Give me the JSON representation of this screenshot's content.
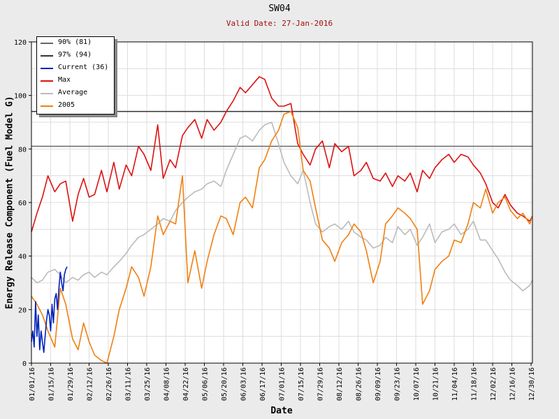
{
  "chart_data": {
    "type": "line",
    "title": "SW04",
    "subtitle": "Valid Date: 27-Jan-2016",
    "xlabel": "Date",
    "ylabel": "Energy Release Component (Fuel Model G)",
    "ylim": [
      0,
      120
    ],
    "yticks": [
      0,
      20,
      40,
      60,
      80,
      100,
      120
    ],
    "xlim": [
      "2016-01-01",
      "2016-12-31"
    ],
    "xticks": [
      "01/01/16",
      "01/15/16",
      "01/29/16",
      "02/12/16",
      "02/26/16",
      "03/11/16",
      "03/25/16",
      "04/08/16",
      "04/22/16",
      "05/06/16",
      "05/20/16",
      "06/03/16",
      "06/17/16",
      "07/01/16",
      "07/15/16",
      "07/29/16",
      "08/12/16",
      "08/26/16",
      "09/09/16",
      "09/23/16",
      "10/07/16",
      "10/21/16",
      "11/04/16",
      "11/18/16",
      "12/02/16",
      "12/16/16",
      "12/30/16"
    ],
    "grid": true,
    "legend_position": "top-left",
    "reference_lines": [
      {
        "name": "90% (81)",
        "value": 81,
        "color": "#666666"
      },
      {
        "name": "97% (94)",
        "value": 94,
        "color": "#333333"
      }
    ],
    "series": [
      {
        "name": "Max",
        "color": "#dd1111",
        "x": [
          "2016-01-01",
          "2016-01-05",
          "2016-01-09",
          "2016-01-13",
          "2016-01-18",
          "2016-01-22",
          "2016-01-26",
          "2016-01-31",
          "2016-02-04",
          "2016-02-08",
          "2016-02-12",
          "2016-02-16",
          "2016-02-21",
          "2016-02-25",
          "2016-03-01",
          "2016-03-05",
          "2016-03-10",
          "2016-03-14",
          "2016-03-19",
          "2016-03-23",
          "2016-03-28",
          "2016-04-02",
          "2016-04-06",
          "2016-04-11",
          "2016-04-15",
          "2016-04-20",
          "2016-04-24",
          "2016-04-29",
          "2016-05-04",
          "2016-05-08",
          "2016-05-13",
          "2016-05-18",
          "2016-05-22",
          "2016-05-27",
          "2016-06-01",
          "2016-06-05",
          "2016-06-10",
          "2016-06-15",
          "2016-06-19",
          "2016-06-24",
          "2016-06-29",
          "2016-07-03",
          "2016-07-08",
          "2016-07-13",
          "2016-07-17",
          "2016-07-22",
          "2016-07-26",
          "2016-07-31",
          "2016-08-05",
          "2016-08-09",
          "2016-08-14",
          "2016-08-19",
          "2016-08-23",
          "2016-08-28",
          "2016-09-01",
          "2016-09-06",
          "2016-09-11",
          "2016-09-15",
          "2016-09-20",
          "2016-09-24",
          "2016-09-29",
          "2016-10-03",
          "2016-10-08",
          "2016-10-12",
          "2016-10-17",
          "2016-10-21",
          "2016-10-26",
          "2016-10-31",
          "2016-11-04",
          "2016-11-09",
          "2016-11-14",
          "2016-11-18",
          "2016-11-23",
          "2016-11-27",
          "2016-12-02",
          "2016-12-06",
          "2016-12-11",
          "2016-12-15",
          "2016-12-20",
          "2016-12-24",
          "2016-12-29",
          "2016-12-31"
        ],
        "values": [
          49,
          56,
          62,
          70,
          64,
          67,
          68,
          53,
          63,
          69,
          62,
          63,
          72,
          64,
          75,
          65,
          74,
          70,
          81,
          78,
          72,
          89,
          69,
          76,
          73,
          85,
          88,
          91,
          84,
          91,
          87,
          90,
          94,
          98,
          103,
          101,
          104,
          107,
          106,
          99,
          96,
          96,
          97,
          82,
          78,
          74,
          80,
          83,
          73,
          82,
          79,
          81,
          70,
          72,
          75,
          69,
          68,
          71,
          66,
          70,
          68,
          71,
          64,
          72,
          69,
          73,
          76,
          78,
          75,
          78,
          77,
          74,
          71,
          67,
          60,
          58,
          63,
          59,
          56,
          55,
          53,
          55
        ]
      },
      {
        "name": "Average",
        "color": "#bbbbbb",
        "x": [
          "2016-01-01",
          "2016-01-05",
          "2016-01-09",
          "2016-01-13",
          "2016-01-18",
          "2016-01-22",
          "2016-01-26",
          "2016-01-31",
          "2016-02-04",
          "2016-02-08",
          "2016-02-12",
          "2016-02-16",
          "2016-02-21",
          "2016-02-25",
          "2016-03-01",
          "2016-03-05",
          "2016-03-10",
          "2016-03-14",
          "2016-03-19",
          "2016-03-23",
          "2016-03-28",
          "2016-04-02",
          "2016-04-06",
          "2016-04-11",
          "2016-04-15",
          "2016-04-20",
          "2016-04-24",
          "2016-04-29",
          "2016-05-04",
          "2016-05-08",
          "2016-05-13",
          "2016-05-18",
          "2016-05-22",
          "2016-05-27",
          "2016-06-01",
          "2016-06-05",
          "2016-06-10",
          "2016-06-15",
          "2016-06-19",
          "2016-06-24",
          "2016-06-29",
          "2016-07-03",
          "2016-07-08",
          "2016-07-13",
          "2016-07-17",
          "2016-07-22",
          "2016-07-26",
          "2016-07-31",
          "2016-08-05",
          "2016-08-09",
          "2016-08-14",
          "2016-08-19",
          "2016-08-23",
          "2016-08-28",
          "2016-09-01",
          "2016-09-06",
          "2016-09-11",
          "2016-09-15",
          "2016-09-20",
          "2016-09-24",
          "2016-09-29",
          "2016-10-03",
          "2016-10-08",
          "2016-10-12",
          "2016-10-17",
          "2016-10-21",
          "2016-10-26",
          "2016-10-31",
          "2016-11-04",
          "2016-11-09",
          "2016-11-14",
          "2016-11-18",
          "2016-11-23",
          "2016-11-27",
          "2016-12-02",
          "2016-12-06",
          "2016-12-11",
          "2016-12-15",
          "2016-12-20",
          "2016-12-24",
          "2016-12-29",
          "2016-12-31"
        ],
        "values": [
          32,
          30,
          31,
          34,
          35,
          33,
          30,
          32,
          31,
          33,
          34,
          32,
          34,
          33,
          36,
          38,
          41,
          44,
          47,
          48,
          50,
          52,
          54,
          53,
          57,
          60,
          62,
          64,
          65,
          67,
          68,
          66,
          72,
          78,
          84,
          85,
          83,
          87,
          89,
          90,
          82,
          75,
          70,
          67,
          72,
          60,
          52,
          49,
          51,
          52,
          50,
          53,
          49,
          47,
          46,
          43,
          44,
          47,
          45,
          51,
          48,
          50,
          44,
          47,
          52,
          45,
          49,
          50,
          52,
          48,
          50,
          53,
          46,
          46,
          42,
          39,
          34,
          31,
          29,
          27,
          29,
          31
        ]
      },
      {
        "name": "2005",
        "color": "#f08010",
        "x": [
          "2016-01-01",
          "2016-01-05",
          "2016-01-09",
          "2016-01-13",
          "2016-01-18",
          "2016-01-22",
          "2016-01-26",
          "2016-01-31",
          "2016-02-04",
          "2016-02-08",
          "2016-02-12",
          "2016-02-16",
          "2016-02-21",
          "2016-02-25",
          "2016-03-01",
          "2016-03-05",
          "2016-03-10",
          "2016-03-14",
          "2016-03-19",
          "2016-03-23",
          "2016-03-28",
          "2016-04-02",
          "2016-04-06",
          "2016-04-11",
          "2016-04-15",
          "2016-04-20",
          "2016-04-24",
          "2016-04-29",
          "2016-05-04",
          "2016-05-08",
          "2016-05-13",
          "2016-05-18",
          "2016-05-22",
          "2016-05-27",
          "2016-06-01",
          "2016-06-05",
          "2016-06-10",
          "2016-06-15",
          "2016-06-19",
          "2016-06-24",
          "2016-06-29",
          "2016-07-03",
          "2016-07-08",
          "2016-07-13",
          "2016-07-17",
          "2016-07-22",
          "2016-07-26",
          "2016-07-31",
          "2016-08-05",
          "2016-08-09",
          "2016-08-14",
          "2016-08-19",
          "2016-08-23",
          "2016-08-28",
          "2016-09-01",
          "2016-09-06",
          "2016-09-11",
          "2016-09-15",
          "2016-09-20",
          "2016-09-24",
          "2016-09-29",
          "2016-10-03",
          "2016-10-08",
          "2016-10-12",
          "2016-10-17",
          "2016-10-21",
          "2016-10-26",
          "2016-10-31",
          "2016-11-04",
          "2016-11-09",
          "2016-11-14",
          "2016-11-18",
          "2016-11-23",
          "2016-11-27",
          "2016-12-02",
          "2016-12-06",
          "2016-12-11",
          "2016-12-15",
          "2016-12-20",
          "2016-12-24",
          "2016-12-29",
          "2016-12-31"
        ],
        "values": [
          25,
          22,
          18,
          12,
          6,
          28,
          22,
          9,
          5,
          15,
          8,
          3,
          1,
          0,
          10,
          20,
          28,
          36,
          32,
          25,
          36,
          55,
          48,
          53,
          52,
          70,
          30,
          42,
          28,
          38,
          48,
          55,
          54,
          48,
          60,
          62,
          58,
          73,
          76,
          83,
          87,
          93,
          94,
          88,
          72,
          68,
          58,
          46,
          43,
          38,
          45,
          48,
          52,
          49,
          42,
          30,
          38,
          52,
          55,
          58,
          56,
          54,
          50,
          22,
          27,
          35,
          38,
          40,
          46,
          45,
          52,
          60,
          58,
          65,
          56,
          60,
          62,
          57,
          54,
          56,
          52,
          55
        ]
      },
      {
        "name": "Current (36)",
        "color": "#0022bb",
        "x": [
          "2016-01-01",
          "2016-01-02",
          "2016-01-03",
          "2016-01-04",
          "2016-01-05",
          "2016-01-06",
          "2016-01-07",
          "2016-01-08",
          "2016-01-09",
          "2016-01-10",
          "2016-01-11",
          "2016-01-12",
          "2016-01-13",
          "2016-01-14",
          "2016-01-15",
          "2016-01-16",
          "2016-01-17",
          "2016-01-18",
          "2016-01-19",
          "2016-01-20",
          "2016-01-21",
          "2016-01-22",
          "2016-01-23",
          "2016-01-24",
          "2016-01-25",
          "2016-01-26",
          "2016-01-27"
        ],
        "values": [
          8,
          12,
          6,
          23,
          10,
          18,
          5,
          12,
          8,
          4,
          10,
          16,
          20,
          18,
          12,
          22,
          15,
          24,
          26,
          20,
          28,
          34,
          30,
          27,
          33,
          35,
          36
        ]
      }
    ]
  }
}
